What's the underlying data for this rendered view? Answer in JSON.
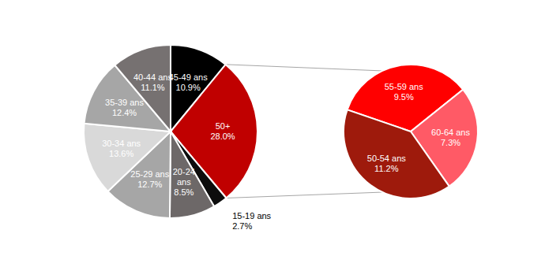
{
  "chart_data": [
    {
      "type": "pie",
      "categories": [
        "45-49 ans",
        "50+",
        "15-19 ans",
        "20-24 ans",
        "25-29 ans",
        "30-34 ans",
        "35-39 ans",
        "40-44 ans"
      ],
      "values": [
        10.9,
        28.0,
        2.7,
        8.5,
        12.7,
        13.6,
        12.4,
        11.1
      ],
      "value_labels": [
        "10.9%",
        "28.0%",
        "2.7%",
        "8.5%",
        "12.7%",
        "13.6%",
        "12.4%",
        "11.1%"
      ],
      "colors": [
        "#000000",
        "#c00000",
        "#0d0d0d",
        "#6d6868",
        "#a6a6a6",
        "#d9d9d9",
        "#a6a6a6",
        "#767171"
      ],
      "data_labels": true
    },
    {
      "type": "pie",
      "categories": [
        "55-59 ans",
        "60-64 ans",
        "50-54 ans"
      ],
      "values": [
        9.5,
        7.3,
        11.2
      ],
      "value_labels": [
        "9.5%",
        "7.3%",
        "11.2%"
      ],
      "colors": [
        "#ff0000",
        "#ff5a66",
        "#9e1a0c"
      ],
      "data_labels": true
    }
  ]
}
